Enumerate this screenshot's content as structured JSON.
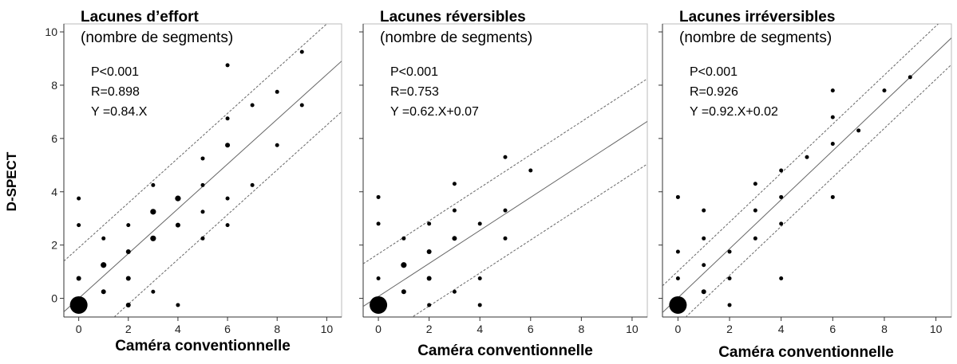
{
  "figure": {
    "ylabel": "D-SPECT",
    "xlabel": "Caméra conventionnelle"
  },
  "chart_data": [
    {
      "type": "scatter",
      "title": "Lacunes d’effort",
      "subtitle": "(nombre de segments)",
      "stats": [
        "P<0.001",
        "R=0.898",
        "Y =0.84.X"
      ],
      "xlabel": "Caméra conventionnelle",
      "ylabel": "D-SPECT",
      "xlim": [
        -0.6,
        10.6
      ],
      "ylim": [
        -0.7,
        10.3
      ],
      "xticks": [
        0,
        2,
        4,
        6,
        8,
        10
      ],
      "yticks": [
        0,
        2,
        4,
        6,
        8,
        10
      ],
      "regression": {
        "slope": 0.84,
        "intercept": 0,
        "band_offset": 1.9
      },
      "points": [
        {
          "x": 0,
          "y": 3.75,
          "n": 1
        },
        {
          "x": 0,
          "y": 2.75,
          "n": 1
        },
        {
          "x": 0,
          "y": 0.75,
          "n": 2
        },
        {
          "x": 0,
          "y": -0.25,
          "n": 40
        },
        {
          "x": 1,
          "y": 2.25,
          "n": 1
        },
        {
          "x": 1,
          "y": 1.25,
          "n": 3
        },
        {
          "x": 1,
          "y": 0.25,
          "n": 2
        },
        {
          "x": 2,
          "y": 2.75,
          "n": 1
        },
        {
          "x": 2,
          "y": 1.75,
          "n": 2
        },
        {
          "x": 2,
          "y": 0.75,
          "n": 2
        },
        {
          "x": 2,
          "y": -0.25,
          "n": 2
        },
        {
          "x": 3,
          "y": 4.25,
          "n": 1
        },
        {
          "x": 3,
          "y": 3.25,
          "n": 3
        },
        {
          "x": 3,
          "y": 2.25,
          "n": 3
        },
        {
          "x": 3,
          "y": 0.25,
          "n": 1
        },
        {
          "x": 4,
          "y": 3.75,
          "n": 3
        },
        {
          "x": 4,
          "y": 2.75,
          "n": 2
        },
        {
          "x": 4,
          "y": -0.25,
          "n": 1
        },
        {
          "x": 5,
          "y": 5.25,
          "n": 1
        },
        {
          "x": 5,
          "y": 4.25,
          "n": 1
        },
        {
          "x": 5,
          "y": 3.25,
          "n": 1
        },
        {
          "x": 5,
          "y": 2.25,
          "n": 1
        },
        {
          "x": 6,
          "y": 8.75,
          "n": 1
        },
        {
          "x": 6,
          "y": 6.75,
          "n": 1
        },
        {
          "x": 6,
          "y": 5.75,
          "n": 2
        },
        {
          "x": 6,
          "y": 3.75,
          "n": 1
        },
        {
          "x": 6,
          "y": 2.75,
          "n": 1
        },
        {
          "x": 7,
          "y": 7.25,
          "n": 1
        },
        {
          "x": 7,
          "y": 4.25,
          "n": 1
        },
        {
          "x": 8,
          "y": 7.75,
          "n": 1
        },
        {
          "x": 8,
          "y": 5.75,
          "n": 1
        },
        {
          "x": 9,
          "y": 9.25,
          "n": 1
        },
        {
          "x": 9,
          "y": 7.25,
          "n": 1
        }
      ]
    },
    {
      "type": "scatter",
      "title": "Lacunes réversibles",
      "subtitle": "(nombre de segments)",
      "stats": [
        "P<0.001",
        "R=0.753",
        "Y =0.62.X+0.07"
      ],
      "xlabel": "Caméra conventionnelle",
      "ylabel": "",
      "xlim": [
        -0.6,
        10.6
      ],
      "ylim": [
        -0.7,
        10.3
      ],
      "xticks": [
        0,
        2,
        4,
        6,
        8,
        10
      ],
      "yticks": [
        0,
        2,
        4,
        6,
        8,
        10
      ],
      "regression": {
        "slope": 0.62,
        "intercept": 0.07,
        "band_offset": 1.6
      },
      "points": [
        {
          "x": 0,
          "y": 3.8,
          "n": 1
        },
        {
          "x": 0,
          "y": 2.8,
          "n": 1
        },
        {
          "x": 0,
          "y": 0.75,
          "n": 1
        },
        {
          "x": 0,
          "y": -0.25,
          "n": 40
        },
        {
          "x": 1,
          "y": 2.25,
          "n": 1
        },
        {
          "x": 1,
          "y": 1.25,
          "n": 3
        },
        {
          "x": 1,
          "y": 0.25,
          "n": 2
        },
        {
          "x": 2,
          "y": 2.8,
          "n": 1
        },
        {
          "x": 2,
          "y": 1.75,
          "n": 2
        },
        {
          "x": 2,
          "y": 0.75,
          "n": 2
        },
        {
          "x": 2,
          "y": -0.25,
          "n": 1
        },
        {
          "x": 3,
          "y": 4.3,
          "n": 1
        },
        {
          "x": 3,
          "y": 3.3,
          "n": 1
        },
        {
          "x": 3,
          "y": 2.25,
          "n": 2
        },
        {
          "x": 3,
          "y": 0.25,
          "n": 1
        },
        {
          "x": 4,
          "y": 2.8,
          "n": 1
        },
        {
          "x": 4,
          "y": 0.75,
          "n": 1
        },
        {
          "x": 4,
          "y": -0.25,
          "n": 1
        },
        {
          "x": 5,
          "y": 5.3,
          "n": 1
        },
        {
          "x": 5,
          "y": 3.3,
          "n": 1
        },
        {
          "x": 5,
          "y": 2.25,
          "n": 1
        },
        {
          "x": 6,
          "y": 4.8,
          "n": 1
        }
      ]
    },
    {
      "type": "scatter",
      "title": "Lacunes irréversibles",
      "subtitle": "(nombre de segments)",
      "stats": [
        "P<0.001",
        "R=0.926",
        "Y =0.92.X+0.02"
      ],
      "xlabel": "Caméra conventionnelle",
      "ylabel": "",
      "xlim": [
        -0.6,
        10.6
      ],
      "ylim": [
        -0.7,
        10.3
      ],
      "xticks": [
        0,
        2,
        4,
        6,
        8,
        10
      ],
      "yticks": [
        0,
        2,
        4,
        6,
        8,
        10
      ],
      "regression": {
        "slope": 0.92,
        "intercept": 0.02,
        "band_offset": 1.0
      },
      "points": [
        {
          "x": 0,
          "y": 3.8,
          "n": 1
        },
        {
          "x": 0,
          "y": 1.75,
          "n": 1
        },
        {
          "x": 0,
          "y": 0.75,
          "n": 1
        },
        {
          "x": 0,
          "y": -0.25,
          "n": 40
        },
        {
          "x": 1,
          "y": 3.3,
          "n": 1
        },
        {
          "x": 1,
          "y": 2.25,
          "n": 1
        },
        {
          "x": 1,
          "y": 1.25,
          "n": 1
        },
        {
          "x": 1,
          "y": 0.25,
          "n": 2
        },
        {
          "x": 2,
          "y": 1.75,
          "n": 1
        },
        {
          "x": 2,
          "y": 0.75,
          "n": 1
        },
        {
          "x": 2,
          "y": -0.25,
          "n": 1
        },
        {
          "x": 3,
          "y": 4.3,
          "n": 1
        },
        {
          "x": 3,
          "y": 3.3,
          "n": 1
        },
        {
          "x": 3,
          "y": 2.25,
          "n": 1
        },
        {
          "x": 4,
          "y": 4.8,
          "n": 1
        },
        {
          "x": 4,
          "y": 3.8,
          "n": 1
        },
        {
          "x": 4,
          "y": 2.8,
          "n": 1
        },
        {
          "x": 4,
          "y": 0.75,
          "n": 1
        },
        {
          "x": 5,
          "y": 5.3,
          "n": 1
        },
        {
          "x": 6,
          "y": 7.8,
          "n": 1
        },
        {
          "x": 6,
          "y": 6.8,
          "n": 1
        },
        {
          "x": 6,
          "y": 5.8,
          "n": 1
        },
        {
          "x": 6,
          "y": 3.8,
          "n": 1
        },
        {
          "x": 7,
          "y": 6.3,
          "n": 1
        },
        {
          "x": 8,
          "y": 7.8,
          "n": 1
        },
        {
          "x": 9,
          "y": 8.3,
          "n": 1
        }
      ]
    }
  ]
}
